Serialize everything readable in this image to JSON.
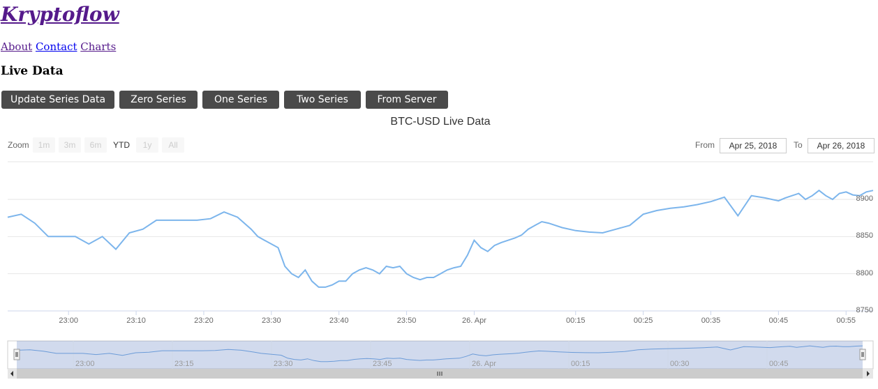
{
  "site": {
    "title": "Kryptoflow"
  },
  "nav": {
    "items": [
      {
        "label": "About",
        "visited": true
      },
      {
        "label": "Contact",
        "visited": false
      },
      {
        "label": "Charts",
        "visited": true
      }
    ]
  },
  "section": {
    "title": "Live Data"
  },
  "buttons": [
    "Update Series Data",
    "Zero Series",
    "One Series",
    "Two Series",
    "From Server"
  ],
  "range_selector": {
    "zoom_label": "Zoom",
    "zoom_buttons": [
      "1m",
      "3m",
      "6m",
      "YTD",
      "1y",
      "All"
    ],
    "active": "YTD",
    "from_label": "From",
    "from_value": "Apr 25, 2018",
    "to_label": "To",
    "to_value": "Apr 26, 2018"
  },
  "chart_data": {
    "type": "line",
    "title": "BTC-USD Live Data",
    "x_tick_labels": [
      "23:00",
      "23:10",
      "23:20",
      "23:30",
      "23:40",
      "23:50",
      "26. Apr",
      "00:15",
      "00:25",
      "00:35",
      "00:45",
      "00:55"
    ],
    "y_tick_labels": [
      "8750",
      "8800",
      "8850",
      "8900"
    ],
    "ylim": [
      8750,
      8900
    ],
    "x_start": "2018-04-25 22:51",
    "x_end": "2018-04-26 00:59",
    "navigator_labels": [
      "23:00",
      "23:15",
      "23:30",
      "23:45",
      "26. Apr",
      "00:15",
      "00:30",
      "00:45"
    ],
    "series": [
      {
        "color": "#7cb5ec",
        "x": [
          "22:51",
          "22:53",
          "22:55",
          "22:57",
          "22:59",
          "23:01",
          "23:03",
          "23:05",
          "23:07",
          "23:09",
          "23:11",
          "23:13",
          "23:15",
          "23:17",
          "23:19",
          "23:21",
          "23:23",
          "23:25",
          "23:27",
          "23:28",
          "23:29",
          "23:30",
          "23:31",
          "23:32",
          "23:33",
          "23:34",
          "23:35",
          "23:36",
          "23:37",
          "23:38",
          "23:39",
          "23:40",
          "23:41",
          "23:42",
          "23:43",
          "23:44",
          "23:45",
          "23:46",
          "23:47",
          "23:48",
          "23:49",
          "23:50",
          "23:51",
          "23:52",
          "23:53",
          "23:54",
          "23:55",
          "23:56",
          "23:57",
          "23:58",
          "23:59",
          "00:00",
          "00:01",
          "00:02",
          "00:03",
          "00:04",
          "00:05",
          "00:06",
          "00:07",
          "00:08",
          "00:09",
          "00:10",
          "00:11",
          "00:13",
          "00:15",
          "00:17",
          "00:19",
          "00:21",
          "00:23",
          "00:25",
          "00:27",
          "00:29",
          "00:31",
          "00:33",
          "00:35",
          "00:37",
          "00:39",
          "00:41",
          "00:43",
          "00:45",
          "00:46",
          "00:47",
          "00:48",
          "00:49",
          "00:50",
          "00:51",
          "00:52",
          "00:53",
          "00:54",
          "00:55",
          "00:56",
          "00:57",
          "00:58",
          "00:59"
        ],
        "y": [
          8876,
          8880,
          8868,
          8850,
          8850,
          8850,
          8840,
          8850,
          8833,
          8855,
          8860,
          8872,
          8872,
          8872,
          8872,
          8874,
          8883,
          8876,
          8860,
          8850,
          8845,
          8840,
          8835,
          8810,
          8800,
          8795,
          8805,
          8790,
          8782,
          8782,
          8785,
          8790,
          8790,
          8800,
          8805,
          8808,
          8805,
          8800,
          8810,
          8808,
          8810,
          8800,
          8795,
          8792,
          8795,
          8795,
          8800,
          8805,
          8808,
          8810,
          8825,
          8845,
          8835,
          8830,
          8838,
          8842,
          8845,
          8848,
          8852,
          8860,
          8865,
          8870,
          8868,
          8862,
          8858,
          8856,
          8855,
          8860,
          8865,
          8880,
          8885,
          8888,
          8890,
          8893,
          8897,
          8903,
          8878,
          8905,
          8902,
          8898,
          8902,
          8905,
          8908,
          8900,
          8905,
          8912,
          8905,
          8900,
          8908,
          8910,
          8906,
          8905,
          8910,
          8912
        ]
      }
    ]
  }
}
